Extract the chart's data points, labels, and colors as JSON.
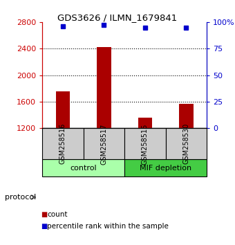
{
  "title": "GDS3626 / ILMN_1679841",
  "samples": [
    "GSM258516",
    "GSM258517",
    "GSM258515",
    "GSM258530"
  ],
  "counts": [
    1750,
    2420,
    1360,
    1570
  ],
  "percentile_ranks": [
    96,
    97,
    95,
    95
  ],
  "ylim_left": [
    1200,
    2800
  ],
  "ylim_right": [
    0,
    100
  ],
  "left_ticks": [
    1200,
    1600,
    2000,
    2400,
    2800
  ],
  "right_ticks": [
    0,
    25,
    50,
    75,
    100
  ],
  "right_tick_labels": [
    "0",
    "25",
    "50",
    "75",
    "100%"
  ],
  "bar_color": "#aa0000",
  "dot_color": "#0000cc",
  "groups": [
    {
      "label": "control",
      "samples": [
        0,
        1
      ],
      "color": "#aaffaa"
    },
    {
      "label": "MIF depletion",
      "samples": [
        2,
        3
      ],
      "color": "#44cc44"
    }
  ],
  "protocol_label": "protocol",
  "legend_count_label": "count",
  "legend_pct_label": "percentile rank within the sample",
  "left_axis_color": "#cc0000",
  "right_axis_color": "#0000cc",
  "background_color": "#ffffff",
  "plot_bg_color": "#ffffff",
  "sample_box_color": "#cccccc"
}
